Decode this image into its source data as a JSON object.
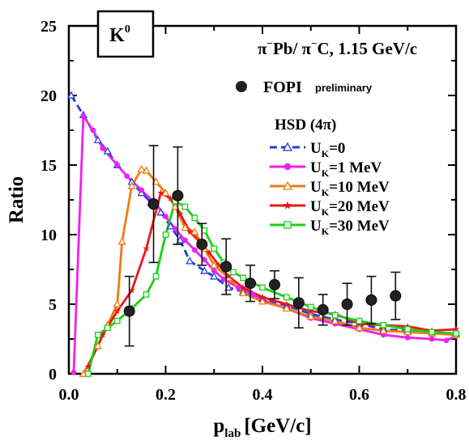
{
  "chart_data": {
    "type": "line",
    "ylabel": "Ratio",
    "xlabel_main": "p",
    "xlabel_sub": "lab",
    "xlabel_unit": "[GeV/c]",
    "xlim": [
      0,
      0.8
    ],
    "ylim": [
      0,
      25
    ],
    "x_ticks": [
      "0.0",
      "0.2",
      "0.4",
      "0.6",
      "0.8"
    ],
    "y_ticks": [
      "0",
      "5",
      "10",
      "15",
      "20",
      "25"
    ],
    "particle_box": {
      "main": "K",
      "sup": "0"
    },
    "reaction": {
      "p1": "π",
      "s1": "−",
      "p2": "Pb/ π",
      "s2": "−",
      "p3": "C,  1.15 GeV/c"
    },
    "legend_title": "HSD (4π)",
    "fopi": {
      "label": "FOPI",
      "sub_label": "preliminary"
    },
    "series_label_prefix": "U",
    "series_label_sub": "K",
    "series": [
      {
        "name": "=0",
        "color": "#1f3fd8",
        "dash": "9,5",
        "marker": "triangle-open",
        "points": [
          [
            0.005,
            20.0
          ],
          [
            0.03,
            18.6
          ],
          [
            0.06,
            16.8
          ],
          [
            0.08,
            16.0
          ],
          [
            0.1,
            15.0
          ],
          [
            0.13,
            13.8
          ],
          [
            0.15,
            13.0
          ],
          [
            0.17,
            12.3
          ],
          [
            0.19,
            11.6
          ],
          [
            0.21,
            10.6
          ],
          [
            0.23,
            9.6
          ],
          [
            0.25,
            8.1
          ],
          [
            0.28,
            7.4
          ],
          [
            0.3,
            7.0
          ],
          [
            0.33,
            6.2
          ],
          [
            0.36,
            5.9
          ],
          [
            0.4,
            5.4
          ],
          [
            0.45,
            4.9
          ],
          [
            0.5,
            4.3
          ],
          [
            0.55,
            3.9
          ],
          [
            0.6,
            3.6
          ],
          [
            0.65,
            3.2
          ],
          [
            0.7,
            3.1
          ],
          [
            0.75,
            2.9
          ],
          [
            0.8,
            2.9
          ]
        ]
      },
      {
        "name": "=1 MeV",
        "color": "#f020f0",
        "dash": "",
        "marker": "circle-filled",
        "points": [
          [
            0.01,
            0.1
          ],
          [
            0.03,
            18.5
          ],
          [
            0.05,
            17.5
          ],
          [
            0.07,
            16.2
          ],
          [
            0.1,
            15.0
          ],
          [
            0.12,
            14.2
          ],
          [
            0.15,
            13.2
          ],
          [
            0.18,
            12.2
          ],
          [
            0.2,
            11.3
          ],
          [
            0.22,
            10.4
          ],
          [
            0.24,
            9.6
          ],
          [
            0.26,
            8.9
          ],
          [
            0.28,
            8.2
          ],
          [
            0.3,
            7.4
          ],
          [
            0.32,
            6.8
          ],
          [
            0.35,
            6.2
          ],
          [
            0.38,
            5.7
          ],
          [
            0.4,
            5.3
          ],
          [
            0.45,
            4.7
          ],
          [
            0.5,
            4.0
          ],
          [
            0.55,
            3.6
          ],
          [
            0.6,
            3.2
          ],
          [
            0.65,
            2.8
          ],
          [
            0.7,
            2.6
          ],
          [
            0.75,
            2.5
          ],
          [
            0.78,
            2.4
          ],
          [
            0.8,
            2.7
          ]
        ]
      },
      {
        "name": "=10 MeV",
        "color": "#f27a10",
        "dash": "",
        "marker": "triangle-open",
        "points": [
          [
            0.03,
            0.0
          ],
          [
            0.06,
            2.0
          ],
          [
            0.08,
            3.5
          ],
          [
            0.1,
            5.0
          ],
          [
            0.11,
            9.5
          ],
          [
            0.13,
            13.5
          ],
          [
            0.15,
            14.7
          ],
          [
            0.16,
            14.6
          ],
          [
            0.18,
            13.8
          ],
          [
            0.2,
            13.0
          ],
          [
            0.22,
            12.0
          ],
          [
            0.24,
            10.5
          ],
          [
            0.26,
            10.2
          ],
          [
            0.28,
            9.0
          ],
          [
            0.3,
            7.8
          ],
          [
            0.33,
            6.9
          ],
          [
            0.36,
            5.8
          ],
          [
            0.4,
            5.2
          ],
          [
            0.45,
            4.7
          ],
          [
            0.5,
            4.1
          ],
          [
            0.55,
            3.8
          ],
          [
            0.6,
            3.3
          ],
          [
            0.65,
            3.1
          ],
          [
            0.7,
            3.0
          ],
          [
            0.75,
            2.9
          ],
          [
            0.8,
            2.8
          ]
        ]
      },
      {
        "name": "=20 MeV",
        "color": "#e81818",
        "dash": "",
        "marker": "star",
        "points": [
          [
            0.04,
            0.5
          ],
          [
            0.07,
            2.8
          ],
          [
            0.1,
            4.5
          ],
          [
            0.13,
            6.0
          ],
          [
            0.16,
            9.0
          ],
          [
            0.19,
            13.0
          ],
          [
            0.21,
            12.6
          ],
          [
            0.23,
            11.5
          ],
          [
            0.25,
            10.2
          ],
          [
            0.27,
            9.5
          ],
          [
            0.29,
            8.7
          ],
          [
            0.31,
            7.8
          ],
          [
            0.33,
            7.0
          ],
          [
            0.36,
            6.2
          ],
          [
            0.4,
            5.5
          ],
          [
            0.45,
            5.0
          ],
          [
            0.5,
            4.5
          ],
          [
            0.55,
            4.3
          ],
          [
            0.6,
            3.6
          ],
          [
            0.65,
            3.5
          ],
          [
            0.7,
            3.4
          ],
          [
            0.75,
            3.1
          ],
          [
            0.8,
            3.2
          ]
        ]
      },
      {
        "name": "=30 MeV",
        "color": "#18d018",
        "dash": "",
        "marker": "square-open",
        "points": [
          [
            0.04,
            0.0
          ],
          [
            0.06,
            2.8
          ],
          [
            0.08,
            3.3
          ],
          [
            0.1,
            3.8
          ],
          [
            0.13,
            4.7
          ],
          [
            0.16,
            5.7
          ],
          [
            0.18,
            7.0
          ],
          [
            0.2,
            10.0
          ],
          [
            0.22,
            12.4
          ],
          [
            0.24,
            12.0
          ],
          [
            0.26,
            11.2
          ],
          [
            0.28,
            10.3
          ],
          [
            0.3,
            9.0
          ],
          [
            0.32,
            8.0
          ],
          [
            0.34,
            7.3
          ],
          [
            0.36,
            6.9
          ],
          [
            0.4,
            6.2
          ],
          [
            0.45,
            5.5
          ],
          [
            0.5,
            4.8
          ],
          [
            0.55,
            4.2
          ],
          [
            0.6,
            3.8
          ],
          [
            0.65,
            3.5
          ],
          [
            0.7,
            3.2
          ],
          [
            0.75,
            3.0
          ],
          [
            0.8,
            2.9
          ]
        ]
      }
    ],
    "fopi_points": [
      {
        "x": 0.125,
        "y": 4.5,
        "err": 2.5
      },
      {
        "x": 0.175,
        "y": 12.2,
        "err": 4.2
      },
      {
        "x": 0.225,
        "y": 12.8,
        "err": 3.5
      },
      {
        "x": 0.275,
        "y": 9.3,
        "err": 1.5
      },
      {
        "x": 0.325,
        "y": 7.7,
        "err": 2.0
      },
      {
        "x": 0.375,
        "y": 6.5,
        "err": 1.3
      },
      {
        "x": 0.425,
        "y": 6.4,
        "err": 1.0
      },
      {
        "x": 0.475,
        "y": 5.1,
        "err": 1.8
      },
      {
        "x": 0.525,
        "y": 4.6,
        "err": 1.1
      },
      {
        "x": 0.575,
        "y": 5.0,
        "err": 1.5
      },
      {
        "x": 0.625,
        "y": 5.3,
        "err": 1.7
      },
      {
        "x": 0.675,
        "y": 5.6,
        "err": 1.7
      }
    ]
  }
}
